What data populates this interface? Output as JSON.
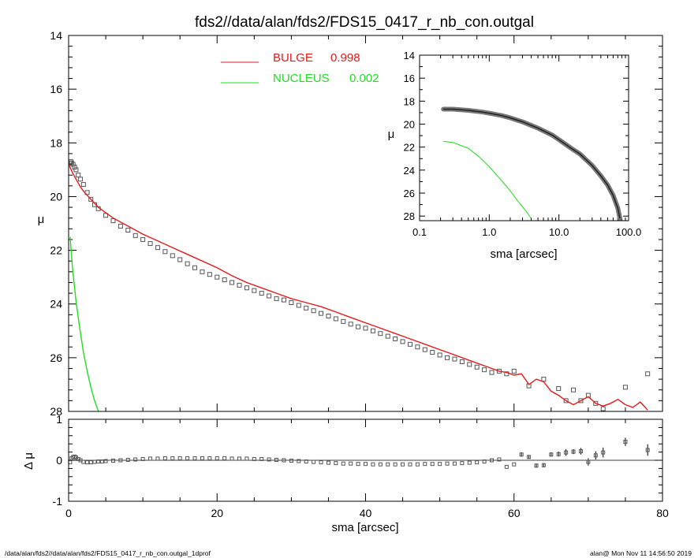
{
  "page": {
    "title": "fds2//data/alan/fds2/FDS15_0417_r_nb_con.outgal",
    "footer_left": "/data/alan/fds2//data/alan/fds2/FDS15_0417_r_nb_con.outgal_1dprof",
    "footer_right": "alan@  Mon Nov 11 14:56:50 2019"
  },
  "colors": {
    "bulge": "#e41a1c",
    "nucleus": "#22dd22",
    "data": "#555555"
  },
  "chart_data": [
    {
      "type": "scatter",
      "role": "main surface-brightness profile",
      "title": "fds2//data/alan/fds2/FDS15_0417_r_nb_con.outgal",
      "xlabel": "",
      "ylabel": "μ",
      "xlim": [
        0,
        80
      ],
      "ylim": [
        28,
        14
      ],
      "y_inverted": true,
      "x_ticks": [
        0,
        20,
        40,
        60,
        80
      ],
      "y_ticks": [
        14,
        16,
        18,
        20,
        22,
        24,
        26,
        28
      ],
      "legend": {
        "placement": "top-center",
        "entries": [
          {
            "label": "BULGE",
            "value": "0.998",
            "color": "#e41a1c"
          },
          {
            "label": "NUCLEUS",
            "value": "0.002",
            "color": "#22dd22"
          }
        ]
      },
      "series": [
        {
          "name": "BULGE",
          "kind": "line",
          "color": "#e41a1c",
          "x": [
            0.1,
            0.5,
            1,
            1.5,
            2,
            3,
            4,
            5,
            6,
            8,
            10,
            12,
            14,
            16,
            18,
            20,
            22,
            24,
            26,
            28,
            30,
            32,
            34,
            36,
            38,
            40,
            42,
            44,
            46,
            48,
            50,
            52,
            54,
            56,
            58,
            59,
            60,
            61,
            62,
            63,
            64,
            65,
            66,
            67,
            68,
            69,
            70,
            71,
            72,
            73,
            74,
            75,
            76,
            77,
            78
          ],
          "y": [
            18.85,
            19.1,
            19.35,
            19.6,
            19.8,
            20.1,
            20.4,
            20.6,
            20.8,
            21.1,
            21.4,
            21.65,
            21.9,
            22.15,
            22.4,
            22.65,
            22.95,
            23.2,
            23.4,
            23.6,
            23.8,
            23.95,
            24.1,
            24.3,
            24.5,
            24.7,
            24.9,
            25.1,
            25.3,
            25.5,
            25.7,
            25.9,
            26.1,
            26.3,
            26.5,
            26.55,
            26.65,
            26.6,
            27.0,
            26.8,
            26.9,
            27.25,
            27.4,
            27.6,
            27.75,
            27.6,
            27.45,
            27.7,
            27.8,
            27.7,
            27.55,
            27.75,
            27.85,
            27.65,
            27.95
          ]
        },
        {
          "name": "NUCLEUS",
          "kind": "line",
          "color": "#22dd22",
          "x": [
            0.2,
            0.5,
            1.0,
            1.5,
            2.0,
            2.5,
            3.0,
            3.5,
            4.0
          ],
          "y": [
            21.5,
            22.6,
            23.9,
            24.9,
            25.8,
            26.5,
            27.1,
            27.6,
            28.0
          ]
        },
        {
          "name": "data",
          "kind": "points",
          "color": "#555555",
          "x": [
            0.2,
            0.3,
            0.4,
            0.6,
            0.8,
            1.0,
            1.3,
            1.6,
            2.0,
            2.5,
            3.0,
            3.5,
            4.0,
            5.0,
            6.0,
            7.0,
            8.0,
            9.0,
            10.0,
            11.0,
            12.0,
            13.0,
            14.0,
            15.0,
            16.0,
            17.0,
            18.0,
            19.0,
            20.0,
            21.0,
            22.0,
            23.0,
            24.0,
            25.0,
            26.0,
            27.0,
            28.0,
            29.0,
            30.0,
            31.0,
            32.0,
            33.0,
            34.0,
            35.0,
            36.0,
            37.0,
            38.0,
            39.0,
            40.0,
            41.0,
            42.0,
            43.0,
            44.0,
            45.0,
            46.0,
            47.0,
            48.0,
            49.0,
            50.0,
            51.0,
            52.0,
            53.0,
            54.0,
            55.0,
            56.0,
            57.0,
            58.0,
            59.0,
            60.0,
            62.0,
            64.0,
            66.0,
            67.0,
            68.0,
            69.0,
            70.0,
            71.0,
            72.0,
            75.0,
            78.0
          ],
          "y": [
            18.75,
            18.7,
            18.75,
            18.8,
            18.9,
            19.0,
            19.2,
            19.35,
            19.55,
            19.85,
            20.1,
            20.3,
            20.45,
            20.7,
            20.9,
            21.1,
            21.25,
            21.45,
            21.6,
            21.75,
            21.9,
            22.05,
            22.2,
            22.35,
            22.5,
            22.65,
            22.8,
            22.9,
            23.0,
            23.1,
            23.2,
            23.3,
            23.4,
            23.5,
            23.6,
            23.7,
            23.8,
            23.85,
            23.95,
            24.05,
            24.15,
            24.25,
            24.35,
            24.45,
            24.55,
            24.65,
            24.75,
            24.85,
            24.9,
            25.0,
            25.1,
            25.2,
            25.3,
            25.4,
            25.5,
            25.6,
            25.7,
            25.8,
            25.9,
            26.0,
            26.05,
            26.15,
            26.25,
            26.35,
            26.45,
            26.55,
            26.5,
            26.6,
            26.5,
            27.05,
            26.8,
            27.15,
            27.6,
            27.2,
            27.6,
            27.4,
            27.7,
            27.9,
            27.1,
            26.6
          ]
        }
      ]
    },
    {
      "type": "scatter",
      "role": "residuals",
      "xlabel": "sma [arcsec]",
      "ylabel": "Δ μ",
      "xlim": [
        0,
        80
      ],
      "ylim": [
        -1,
        1
      ],
      "x_ticks": [
        0,
        20,
        40,
        60,
        80
      ],
      "y_ticks": [
        1,
        0,
        -1
      ],
      "reference_line": 0,
      "series": [
        {
          "name": "residuals",
          "kind": "points-with-errorbars",
          "color": "#555555",
          "x": [
            0.2,
            0.4,
            0.6,
            0.8,
            1.0,
            1.3,
            1.6,
            2.0,
            2.5,
            3.0,
            3.5,
            4.0,
            4.5,
            5.0,
            6.0,
            7.0,
            8.0,
            9.0,
            10.0,
            11.0,
            12.0,
            13.0,
            14.0,
            15.0,
            16.0,
            17.0,
            18.0,
            19.0,
            20.0,
            21.0,
            22.0,
            23.0,
            24.0,
            25.0,
            26.0,
            27.0,
            28.0,
            29.0,
            30.0,
            31.0,
            32.0,
            33.0,
            34.0,
            35.0,
            36.0,
            37.0,
            38.0,
            39.0,
            40.0,
            41.0,
            42.0,
            43.0,
            44.0,
            45.0,
            46.0,
            47.0,
            48.0,
            49.0,
            50.0,
            51.0,
            52.0,
            53.0,
            54.0,
            55.0,
            56.0,
            57.0,
            58.0,
            59.0,
            60.0,
            61.0,
            62.0,
            63.0,
            64.0,
            65.0,
            66.0,
            67.0,
            68.0,
            69.0,
            70.0,
            71.0,
            72.0,
            75.0,
            78.0
          ],
          "y": [
            -0.05,
            0.05,
            0.08,
            0.09,
            0.07,
            0.03,
            0.0,
            -0.04,
            -0.05,
            -0.05,
            -0.04,
            -0.03,
            -0.03,
            -0.02,
            -0.01,
            0.0,
            0.01,
            0.02,
            0.03,
            0.04,
            0.04,
            0.05,
            0.05,
            0.05,
            0.05,
            0.05,
            0.05,
            0.05,
            0.05,
            0.05,
            0.04,
            0.04,
            0.04,
            0.03,
            0.03,
            0.02,
            0.01,
            0.0,
            -0.01,
            -0.02,
            -0.03,
            -0.04,
            -0.05,
            -0.06,
            -0.07,
            -0.08,
            -0.08,
            -0.09,
            -0.09,
            -0.1,
            -0.1,
            -0.1,
            -0.1,
            -0.1,
            -0.1,
            -0.1,
            -0.09,
            -0.09,
            -0.09,
            -0.08,
            -0.08,
            -0.07,
            -0.06,
            -0.05,
            -0.03,
            0.0,
            0.02,
            -0.16,
            -0.1,
            0.14,
            0.08,
            -0.13,
            -0.12,
            0.14,
            0.15,
            0.19,
            0.21,
            0.22,
            -0.04,
            0.12,
            0.19,
            0.45,
            0.25
          ],
          "err": [
            0,
            0,
            0,
            0,
            0,
            0,
            0,
            0,
            0,
            0,
            0,
            0,
            0,
            0,
            0,
            0,
            0,
            0,
            0,
            0,
            0,
            0,
            0,
            0,
            0,
            0,
            0,
            0,
            0,
            0,
            0,
            0,
            0,
            0,
            0,
            0,
            0,
            0,
            0,
            0,
            0,
            0,
            0,
            0,
            0,
            0,
            0,
            0,
            0,
            0,
            0,
            0,
            0,
            0,
            0,
            0,
            0,
            0,
            0,
            0,
            0,
            0,
            0,
            0,
            0,
            0,
            0,
            0,
            0,
            0.05,
            0.04,
            0.05,
            0.05,
            0.05,
            0.06,
            0.08,
            0.06,
            0.08,
            0.09,
            0.1,
            0.12,
            0.1,
            0.14
          ]
        }
      ]
    },
    {
      "type": "scatter",
      "role": "inset log-scale profile",
      "xlabel": "sma [arcsec]",
      "ylabel": "μ",
      "x_scale": "log",
      "xlim": [
        0.1,
        100
      ],
      "ylim": [
        28.4,
        14
      ],
      "y_inverted": true,
      "x_tick_labels": [
        "0.1",
        "1.0",
        "10.0",
        "100.0"
      ],
      "y_ticks": [
        14,
        16,
        18,
        20,
        22,
        24,
        26,
        28
      ],
      "series": [
        {
          "name": "data",
          "kind": "thick-line",
          "color": "#555555",
          "x": [
            0.22,
            0.3,
            0.5,
            0.8,
            1.0,
            1.5,
            2.0,
            3.0,
            5.0,
            8.0,
            10.0,
            15.0,
            20.0,
            30.0,
            40.0,
            50.0,
            60.0,
            70.0,
            75.0
          ],
          "y": [
            18.7,
            18.7,
            18.8,
            18.95,
            19.05,
            19.25,
            19.45,
            19.8,
            20.35,
            20.95,
            21.35,
            22.1,
            22.6,
            23.6,
            24.5,
            25.3,
            26.2,
            27.3,
            28.2
          ]
        },
        {
          "name": "NUCLEUS",
          "kind": "line",
          "color": "#22dd22",
          "x": [
            0.22,
            0.3,
            0.5,
            0.7,
            1.0,
            1.5,
            2.0,
            2.5,
            3.0,
            3.5,
            4.0
          ],
          "y": [
            21.5,
            21.6,
            22.1,
            22.8,
            23.7,
            24.9,
            25.8,
            26.6,
            27.2,
            27.7,
            28.2
          ]
        }
      ]
    }
  ]
}
